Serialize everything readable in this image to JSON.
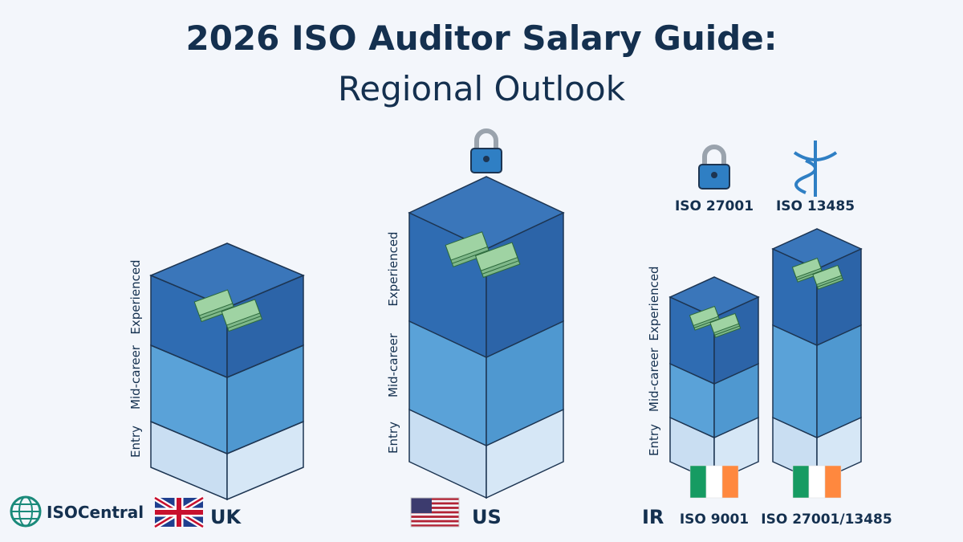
{
  "header": {
    "title_line1": "2026 ISO Auditor Salary Guide:",
    "title_line2": "Regional Outlook"
  },
  "columns": [
    {
      "label": "UK",
      "tiers": [
        "Entry",
        "Mid-career",
        "Experienced"
      ]
    },
    {
      "label": "US",
      "tiers": [
        "Entry",
        "Mid-career",
        "Experienced"
      ]
    },
    {
      "label": "IR",
      "tiers": [
        "Entry",
        "Mid-career",
        "Experienced"
      ],
      "bars": [
        {
          "label": "ISO 9001"
        },
        {
          "label": "ISO 27001/13485"
        }
      ],
      "icons": [
        "ISO 27001",
        "ISO 13485"
      ]
    }
  ],
  "brand": "ISOCentral"
}
